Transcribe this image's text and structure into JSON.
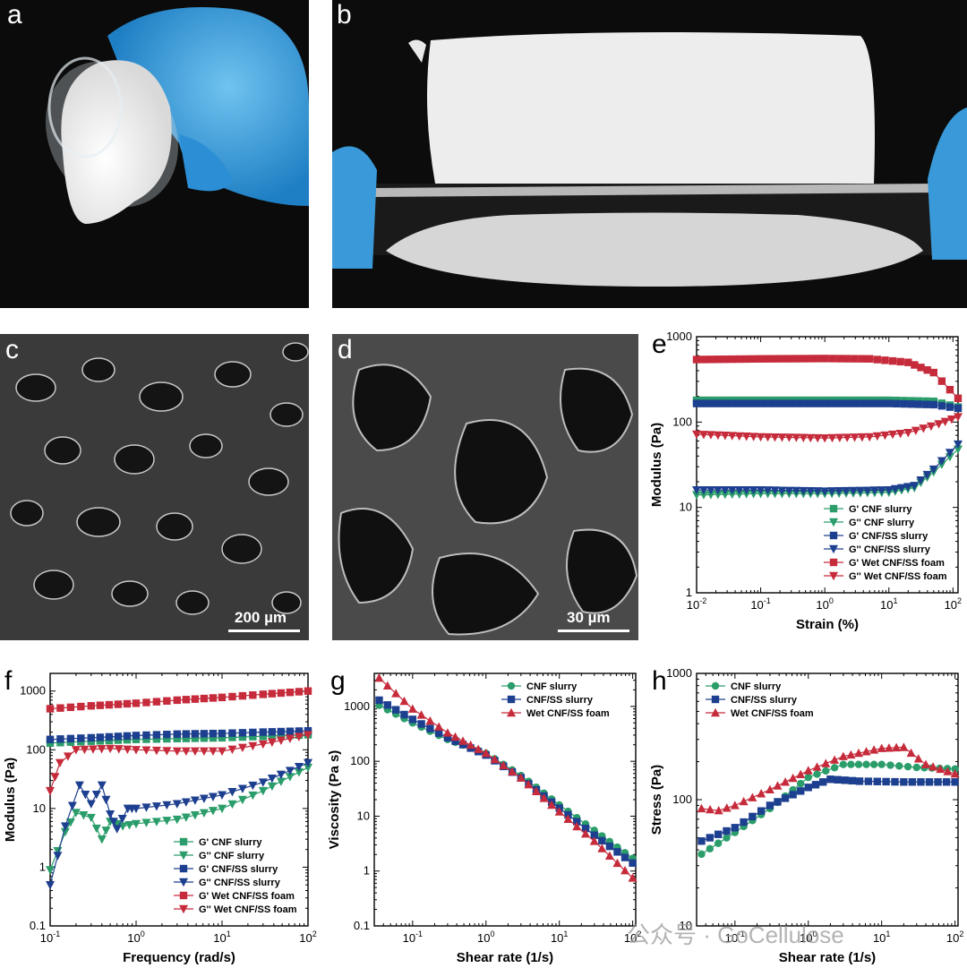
{
  "panel_labels": {
    "a": "a",
    "b": "b",
    "c": "c",
    "d": "d",
    "e": "e",
    "f": "f",
    "g": "g",
    "h": "h"
  },
  "scale_bars": {
    "c": "200 µm",
    "d": "30 µm"
  },
  "watermark": "公众号 · GoCellulose",
  "colors": {
    "cnf": "#2a9d6a",
    "cnfss": "#1d3f8f",
    "foam": "#c62b3b"
  },
  "chart_data": [
    {
      "id": "e",
      "type": "line",
      "xscale": "log",
      "yscale": "log",
      "xlabel": "Strain (%)",
      "ylabel": "Modulus (Pa)",
      "xlim": [
        0.01,
        120
      ],
      "ylim": [
        1,
        1000
      ],
      "xticks": [
        {
          "v": 0.01,
          "b": "10",
          "e": "-2"
        },
        {
          "v": 0.1,
          "b": "10",
          "e": "-1"
        },
        {
          "v": 1,
          "b": "10",
          "e": "0"
        },
        {
          "v": 10,
          "b": "10",
          "e": "1"
        },
        {
          "v": 100,
          "b": "10",
          "e": "2"
        }
      ],
      "yticks": [
        {
          "v": 1,
          "t": "1"
        },
        {
          "v": 10,
          "t": "10"
        },
        {
          "v": 100,
          "t": "100"
        },
        {
          "v": 1000,
          "t": "1000"
        }
      ],
      "legend": "bottom-right",
      "series": [
        {
          "name": "G'  CNF slurry",
          "color": "#2a9d6a",
          "marker": "square",
          "points": [
            [
              0.01,
              180
            ],
            [
              0.1,
              180
            ],
            [
              1,
              180
            ],
            [
              10,
              180
            ],
            [
              50,
              175
            ],
            [
              120,
              150
            ]
          ]
        },
        {
          "name": "G''  CNF slurry",
          "color": "#2a9d6a",
          "marker": "triangle-down",
          "points": [
            [
              0.01,
              14
            ],
            [
              0.1,
              14.5
            ],
            [
              1,
              14.5
            ],
            [
              10,
              15
            ],
            [
              25,
              17
            ],
            [
              50,
              26
            ],
            [
              120,
              48
            ]
          ]
        },
        {
          "name": "G'  CNF/SS slurry",
          "color": "#1d3f8f",
          "marker": "square",
          "points": [
            [
              0.01,
              165
            ],
            [
              0.1,
              165
            ],
            [
              1,
              165
            ],
            [
              10,
              165
            ],
            [
              50,
              160
            ],
            [
              120,
              145
            ]
          ]
        },
        {
          "name": "G''  CNF/SS slurry",
          "color": "#1d3f8f",
          "marker": "triangle-down",
          "points": [
            [
              0.01,
              16
            ],
            [
              0.1,
              16
            ],
            [
              1,
              15.5
            ],
            [
              10,
              16
            ],
            [
              25,
              18
            ],
            [
              50,
              28
            ],
            [
              120,
              55
            ]
          ]
        },
        {
          "name": "G'  Wet CNF/SS foam",
          "color": "#c62b3b",
          "marker": "square",
          "points": [
            [
              0.01,
              540
            ],
            [
              0.1,
              550
            ],
            [
              1,
              555
            ],
            [
              5,
              550
            ],
            [
              20,
              500
            ],
            [
              50,
              380
            ],
            [
              120,
              190
            ]
          ]
        },
        {
          "name": "G''  Wet CNF/SS foam",
          "color": "#c62b3b",
          "marker": "triangle-down",
          "points": [
            [
              0.01,
              72
            ],
            [
              0.1,
              67
            ],
            [
              1,
              65
            ],
            [
              5,
              67
            ],
            [
              20,
              75
            ],
            [
              60,
              95
            ],
            [
              120,
              115
            ]
          ]
        }
      ]
    },
    {
      "id": "f",
      "type": "line",
      "xscale": "log",
      "yscale": "log",
      "xlabel": "Frequency (rad/s)",
      "ylabel": "Modulus (Pa)",
      "xlim": [
        0.1,
        100
      ],
      "ylim": [
        0.1,
        2000
      ],
      "xticks": [
        {
          "v": 0.1,
          "b": "10",
          "e": "-1"
        },
        {
          "v": 1,
          "b": "10",
          "e": "0"
        },
        {
          "v": 10,
          "b": "10",
          "e": "1"
        },
        {
          "v": 100,
          "b": "10",
          "e": "2"
        }
      ],
      "yticks": [
        {
          "v": 0.1,
          "t": "0.1"
        },
        {
          "v": 1,
          "t": "1"
        },
        {
          "v": 10,
          "t": "10"
        },
        {
          "v": 100,
          "t": "100"
        },
        {
          "v": 1000,
          "t": "1000"
        }
      ],
      "legend": "bottom-right",
      "series": [
        {
          "name": "G'  CNF slurry",
          "color": "#2a9d6a",
          "marker": "square",
          "points": [
            [
              0.1,
              130
            ],
            [
              0.3,
              140
            ],
            [
              1,
              150
            ],
            [
              3,
              155
            ],
            [
              10,
              160
            ],
            [
              30,
              170
            ],
            [
              100,
              180
            ]
          ]
        },
        {
          "name": "G''  CNF slurry",
          "color": "#2a9d6a",
          "marker": "triangle-down",
          "points": [
            [
              0.1,
              0.9
            ],
            [
              0.15,
              4
            ],
            [
              0.2,
              8.5
            ],
            [
              0.3,
              7
            ],
            [
              0.4,
              3
            ],
            [
              0.5,
              6
            ],
            [
              0.7,
              5
            ],
            [
              1,
              5.5
            ],
            [
              3,
              6.5
            ],
            [
              10,
              10
            ],
            [
              30,
              20
            ],
            [
              100,
              50
            ]
          ]
        },
        {
          "name": "G'  CNF/SS slurry",
          "color": "#1d3f8f",
          "marker": "square",
          "points": [
            [
              0.1,
              150
            ],
            [
              0.3,
              160
            ],
            [
              1,
              175
            ],
            [
              3,
              185
            ],
            [
              10,
              190
            ],
            [
              30,
              200
            ],
            [
              100,
              210
            ]
          ]
        },
        {
          "name": "G''  CNF/SS slurry",
          "color": "#1d3f8f",
          "marker": "triangle-down",
          "points": [
            [
              0.1,
              0.5
            ],
            [
              0.15,
              5
            ],
            [
              0.22,
              25
            ],
            [
              0.3,
              12
            ],
            [
              0.4,
              25
            ],
            [
              0.5,
              8
            ],
            [
              0.6,
              4.5
            ],
            [
              0.8,
              10
            ],
            [
              1,
              10
            ],
            [
              3,
              12
            ],
            [
              10,
              17
            ],
            [
              30,
              28
            ],
            [
              100,
              60
            ]
          ]
        },
        {
          "name": "G'  Wet CNF/SS foam",
          "color": "#c62b3b",
          "marker": "square",
          "points": [
            [
              0.1,
              500
            ],
            [
              0.3,
              560
            ],
            [
              1,
              620
            ],
            [
              3,
              700
            ],
            [
              10,
              780
            ],
            [
              30,
              880
            ],
            [
              100,
              1000
            ]
          ]
        },
        {
          "name": "G''  Wet CNF/SS foam",
          "color": "#c62b3b",
          "marker": "triangle-down",
          "points": [
            [
              0.1,
              20
            ],
            [
              0.13,
              60
            ],
            [
              0.2,
              100
            ],
            [
              0.5,
              105
            ],
            [
              1,
              100
            ],
            [
              3,
              95
            ],
            [
              10,
              95
            ],
            [
              30,
              125
            ],
            [
              100,
              180
            ]
          ]
        }
      ]
    },
    {
      "id": "g",
      "type": "line",
      "xscale": "log",
      "yscale": "log",
      "xlabel": "Shear rate (1/s)",
      "ylabel": "Viscosity (Pa s)",
      "xlim": [
        0.03,
        110
      ],
      "ylim": [
        0.1,
        4000
      ],
      "xticks": [
        {
          "v": 0.1,
          "b": "10",
          "e": "-1"
        },
        {
          "v": 1,
          "b": "10",
          "e": "0"
        },
        {
          "v": 10,
          "b": "10",
          "e": "1"
        },
        {
          "v": 100,
          "b": "10",
          "e": "2"
        }
      ],
      "yticks": [
        {
          "v": 0.1,
          "t": "0.1"
        },
        {
          "v": 1,
          "t": "1"
        },
        {
          "v": 10,
          "t": "10"
        },
        {
          "v": 100,
          "t": "100"
        },
        {
          "v": 1000,
          "t": "1000"
        }
      ],
      "legend": "top-right",
      "series": [
        {
          "name": "CNF slurry",
          "color": "#2a9d6a",
          "marker": "circle",
          "points": [
            [
              0.035,
              1050
            ],
            [
              0.1,
              500
            ],
            [
              0.3,
              250
            ],
            [
              1,
              140
            ],
            [
              3,
              55
            ],
            [
              10,
              16
            ],
            [
              30,
              5.5
            ],
            [
              100,
              1.7
            ]
          ]
        },
        {
          "name": "CNF/SS slurry",
          "color": "#1d3f8f",
          "marker": "square",
          "points": [
            [
              0.035,
              1300
            ],
            [
              0.1,
              580
            ],
            [
              0.3,
              270
            ],
            [
              1,
              130
            ],
            [
              3,
              50
            ],
            [
              10,
              14
            ],
            [
              30,
              4.5
            ],
            [
              100,
              1.4
            ]
          ]
        },
        {
          "name": "Wet CNF/SS foam",
          "color": "#c62b3b",
          "marker": "triangle-up",
          "points": [
            [
              0.035,
              3300
            ],
            [
              0.1,
              900
            ],
            [
              0.3,
              330
            ],
            [
              1,
              140
            ],
            [
              3,
              50
            ],
            [
              10,
              12
            ],
            [
              30,
              3.5
            ],
            [
              100,
              0.75
            ]
          ]
        }
      ]
    },
    {
      "id": "h",
      "type": "line",
      "xscale": "log",
      "yscale": "log",
      "xlabel": "Shear rate (1/s)",
      "ylabel": "Stress (Pa)",
      "xlim": [
        0.03,
        110
      ],
      "ylim": [
        10,
        1000
      ],
      "xticks": [
        {
          "v": 0.1,
          "b": "10",
          "e": "-1"
        },
        {
          "v": 1,
          "b": "10",
          "e": "0"
        },
        {
          "v": 10,
          "b": "10",
          "e": "1"
        },
        {
          "v": 100,
          "b": "10",
          "e": "2"
        }
      ],
      "yticks": [
        {
          "v": 10,
          "t": "10"
        },
        {
          "v": 100,
          "t": "100"
        },
        {
          "v": 1000,
          "t": "1000"
        }
      ],
      "legend": "top-left",
      "series": [
        {
          "name": "CNF slurry",
          "color": "#2a9d6a",
          "marker": "circle",
          "points": [
            [
              0.035,
              37
            ],
            [
              0.1,
              55
            ],
            [
              0.3,
              85
            ],
            [
              1,
              150
            ],
            [
              3,
              190
            ],
            [
              10,
              190
            ],
            [
              30,
              180
            ],
            [
              100,
              175
            ]
          ]
        },
        {
          "name": "CNF/SS slurry",
          "color": "#1d3f8f",
          "marker": "square",
          "points": [
            [
              0.035,
              47
            ],
            [
              0.1,
              60
            ],
            [
              0.3,
              90
            ],
            [
              1,
              125
            ],
            [
              2,
              145
            ],
            [
              5,
              140
            ],
            [
              20,
              138
            ],
            [
              100,
              138
            ]
          ]
        },
        {
          "name": "Wet CNF/SS foam",
          "color": "#c62b3b",
          "marker": "triangle-up",
          "points": [
            [
              0.035,
              85
            ],
            [
              0.06,
              82
            ],
            [
              0.1,
              90
            ],
            [
              0.3,
              120
            ],
            [
              1,
              170
            ],
            [
              3,
              220
            ],
            [
              10,
              255
            ],
            [
              20,
              260
            ],
            [
              40,
              190
            ],
            [
              100,
              160
            ]
          ]
        }
      ]
    }
  ]
}
